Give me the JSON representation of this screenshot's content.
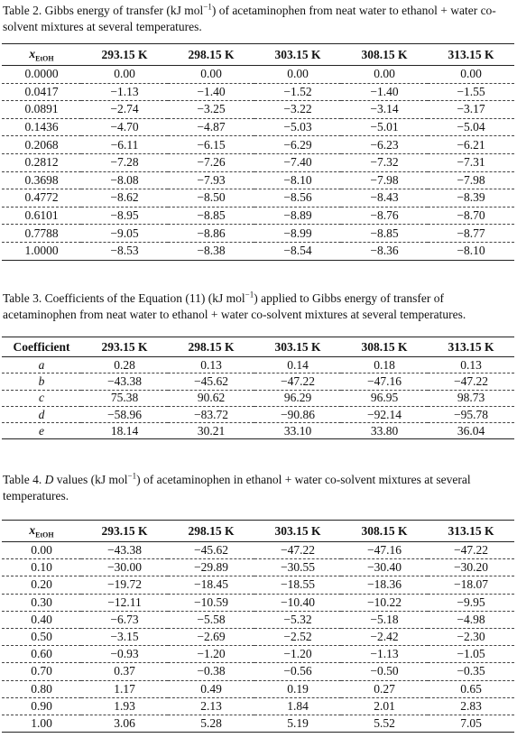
{
  "tables": [
    {
      "caption": [
        "Table 2. Gibbs energy of transfer (kJ mol",
        "−1",
        ") of acetaminophen from neat water to ethanol + water co-solvent mixtures at several temperatures."
      ],
      "header": [
        {
          "symbol": "x",
          "subscript": "EtOH"
        },
        "293.15 K",
        "298.15 K",
        "303.15 K",
        "308.15 K",
        "313.15 K"
      ],
      "rows": [
        [
          "0.0000",
          "0.00",
          "0.00",
          "0.00",
          "0.00",
          "0.00"
        ],
        [
          "0.0417",
          "−1.13",
          "−1.40",
          "−1.52",
          "−1.40",
          "−1.55"
        ],
        [
          "0.0891",
          "−2.74",
          "−3.25",
          "−3.22",
          "−3.14",
          "−3.17"
        ],
        [
          "0.1436",
          "−4.70",
          "−4.87",
          "−5.03",
          "−5.01",
          "−5.04"
        ],
        [
          "0.2068",
          "−6.11",
          "−6.15",
          "−6.29",
          "−6.23",
          "−6.21"
        ],
        [
          "0.2812",
          "−7.28",
          "−7.26",
          "−7.40",
          "−7.32",
          "−7.31"
        ],
        [
          "0.3698",
          "−8.08",
          "−7.93",
          "−8.10",
          "−7.98",
          "−7.98"
        ],
        [
          "0.4772",
          "−8.62",
          "−8.50",
          "−8.56",
          "−8.43",
          "−8.39"
        ],
        [
          "0.6101",
          "−8.95",
          "−8.85",
          "−8.89",
          "−8.76",
          "−8.70"
        ],
        [
          "0.7788",
          "−9.05",
          "−8.86",
          "−8.99",
          "−8.85",
          "−8.77"
        ],
        [
          "1.0000",
          "−8.53",
          "−8.38",
          "−8.54",
          "−8.36",
          "−8.10"
        ]
      ]
    },
    {
      "caption": [
        "Table 3. Coefficients of the Equation (11) (kJ mol",
        "−1",
        ") applied to Gibbs energy of transfer of acetaminophen from neat water to ethanol + water co-solvent mixtures at several temperatures."
      ],
      "header": [
        "Coefficient",
        "293.15 K",
        "298.15 K",
        "303.15 K",
        "308.15 K",
        "313.15 K"
      ],
      "rows": [
        [
          "a",
          "0.28",
          "0.13",
          "0.14",
          "0.18",
          "0.13"
        ],
        [
          "b",
          "−43.38",
          "−45.62",
          "−47.22",
          "−47.16",
          "−47.22"
        ],
        [
          "c",
          "75.38",
          "90.62",
          "96.29",
          "96.95",
          "98.73"
        ],
        [
          "d",
          "−58.96",
          "−83.72",
          "−90.86",
          "−92.14",
          "−95.78"
        ],
        [
          "e",
          "18.14",
          "30.21",
          "33.10",
          "33.80",
          "36.04"
        ]
      ]
    },
    {
      "caption": [
        "Table 4. ",
        "D",
        " values (kJ mol",
        "−1",
        ") of acetaminophen in ethanol + water co-solvent mixtures at several temperatures."
      ],
      "header": [
        {
          "symbol": "x",
          "subscript": "EtOH"
        },
        "293.15 K",
        "298.15 K",
        "303.15 K",
        "308.15 K",
        "313.15 K"
      ],
      "rows": [
        [
          "0.00",
          "−43.38",
          "−45.62",
          "−47.22",
          "−47.16",
          "−47.22"
        ],
        [
          "0.10",
          "−30.00",
          "−29.89",
          "−30.55",
          "−30.40",
          "−30.20"
        ],
        [
          "0.20",
          "−19.72",
          "−18.45",
          "−18.55",
          "−18.36",
          "−18.07"
        ],
        [
          "0.30",
          "−12.11",
          "−10.59",
          "−10.40",
          "−10.22",
          "−9.95"
        ],
        [
          "0.40",
          "−6.73",
          "−5.58",
          "−5.32",
          "−5.18",
          "−4.98"
        ],
        [
          "0.50",
          "−3.15",
          "−2.69",
          "−2.52",
          "−2.42",
          "−2.30"
        ],
        [
          "0.60",
          "−0.93",
          "−1.20",
          "−1.20",
          "−1.13",
          "−1.05"
        ],
        [
          "0.70",
          "0.37",
          "−0.38",
          "−0.56",
          "−0.50",
          "−0.35"
        ],
        [
          "0.80",
          "1.17",
          "0.49",
          "0.19",
          "0.27",
          "0.65"
        ],
        [
          "0.90",
          "1.93",
          "2.13",
          "1.84",
          "2.01",
          "2.83"
        ],
        [
          "1.00",
          "3.06",
          "5.28",
          "5.19",
          "5.52",
          "7.05"
        ]
      ]
    }
  ]
}
